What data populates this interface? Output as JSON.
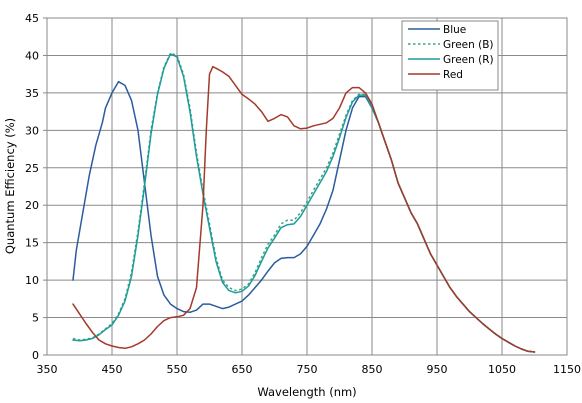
{
  "chart_data": {
    "type": "line",
    "xlabel": "Wavelength (nm)",
    "ylabel": "Quantum Efficiency (%)",
    "xlim": [
      350,
      1150
    ],
    "ylim": [
      0,
      45
    ],
    "x_ticks": [
      "350",
      "450",
      "550",
      "650",
      "750",
      "850",
      "950",
      "1050",
      "1150"
    ],
    "y_ticks": [
      "0",
      "5",
      "10",
      "15",
      "20",
      "25",
      "30",
      "35",
      "40",
      "45"
    ],
    "grid": true,
    "legend_position": "top-right",
    "series": [
      {
        "name": "Blue",
        "color": "#2a5c9e",
        "dash": "solid",
        "points": [
          [
            390,
            10
          ],
          [
            395,
            14
          ],
          [
            405,
            19
          ],
          [
            415,
            24
          ],
          [
            425,
            28
          ],
          [
            435,
            31
          ],
          [
            440,
            33
          ],
          [
            450,
            35
          ],
          [
            460,
            36.5
          ],
          [
            470,
            36
          ],
          [
            480,
            34
          ],
          [
            490,
            30
          ],
          [
            500,
            23
          ],
          [
            510,
            16
          ],
          [
            520,
            10.5
          ],
          [
            530,
            8
          ],
          [
            540,
            6.8
          ],
          [
            550,
            6.2
          ],
          [
            560,
            5.8
          ],
          [
            570,
            5.7
          ],
          [
            580,
            6
          ],
          [
            590,
            6.8
          ],
          [
            600,
            6.8
          ],
          [
            610,
            6.5
          ],
          [
            620,
            6.2
          ],
          [
            630,
            6.4
          ],
          [
            640,
            6.8
          ],
          [
            650,
            7.2
          ],
          [
            660,
            8
          ],
          [
            670,
            9
          ],
          [
            680,
            10
          ],
          [
            690,
            11.2
          ],
          [
            700,
            12.3
          ],
          [
            710,
            12.9
          ],
          [
            720,
            13
          ],
          [
            730,
            13
          ],
          [
            740,
            13.5
          ],
          [
            750,
            14.5
          ],
          [
            760,
            16
          ],
          [
            770,
            17.5
          ],
          [
            780,
            19.5
          ],
          [
            790,
            22
          ],
          [
            800,
            26
          ],
          [
            810,
            30
          ],
          [
            820,
            33
          ],
          [
            830,
            34.5
          ],
          [
            840,
            34.5
          ],
          [
            850,
            33
          ],
          [
            860,
            31
          ],
          [
            870,
            28.5
          ],
          [
            880,
            26
          ],
          [
            890,
            23
          ],
          [
            900,
            21
          ],
          [
            910,
            19
          ],
          [
            920,
            17.5
          ],
          [
            930,
            15.5
          ],
          [
            940,
            13.5
          ],
          [
            950,
            12
          ],
          [
            960,
            10.5
          ],
          [
            970,
            9
          ],
          [
            980,
            7.8
          ],
          [
            990,
            6.8
          ],
          [
            1000,
            5.8
          ],
          [
            1010,
            5
          ],
          [
            1020,
            4.2
          ],
          [
            1030,
            3.5
          ],
          [
            1040,
            2.8
          ],
          [
            1050,
            2.2
          ],
          [
            1060,
            1.7
          ],
          [
            1070,
            1.2
          ],
          [
            1080,
            0.8
          ],
          [
            1090,
            0.5
          ],
          [
            1100,
            0.4
          ]
        ]
      },
      {
        "name": "Green (B)",
        "color": "#3aa582",
        "dash": "dotted",
        "points": [
          [
            390,
            2.2
          ],
          [
            400,
            2
          ],
          [
            410,
            2.1
          ],
          [
            420,
            2.3
          ],
          [
            430,
            2.8
          ],
          [
            440,
            3.5
          ],
          [
            450,
            4.2
          ],
          [
            460,
            5.5
          ],
          [
            470,
            7.5
          ],
          [
            480,
            11
          ],
          [
            490,
            16.5
          ],
          [
            500,
            23
          ],
          [
            510,
            30
          ],
          [
            520,
            35
          ],
          [
            530,
            38.5
          ],
          [
            540,
            40.3
          ],
          [
            550,
            40
          ],
          [
            560,
            37.5
          ],
          [
            570,
            33
          ],
          [
            580,
            27
          ],
          [
            590,
            22
          ],
          [
            600,
            17.5
          ],
          [
            610,
            13
          ],
          [
            620,
            10
          ],
          [
            630,
            9
          ],
          [
            640,
            8.6
          ],
          [
            650,
            8.8
          ],
          [
            660,
            9.5
          ],
          [
            670,
            11
          ],
          [
            680,
            13
          ],
          [
            690,
            14.8
          ],
          [
            700,
            16
          ],
          [
            710,
            17.5
          ],
          [
            720,
            18
          ],
          [
            730,
            18
          ],
          [
            740,
            19
          ],
          [
            750,
            20.5
          ],
          [
            760,
            22
          ],
          [
            770,
            23.5
          ],
          [
            780,
            25
          ],
          [
            790,
            27
          ],
          [
            800,
            29.5
          ],
          [
            810,
            32
          ],
          [
            820,
            34
          ],
          [
            830,
            34.8
          ],
          [
            840,
            34.8
          ],
          [
            850,
            33.2
          ],
          [
            860,
            31
          ],
          [
            870,
            28.5
          ],
          [
            880,
            26
          ],
          [
            890,
            23
          ],
          [
            900,
            21
          ],
          [
            910,
            19
          ],
          [
            920,
            17.5
          ],
          [
            930,
            15.5
          ],
          [
            940,
            13.5
          ],
          [
            950,
            12
          ],
          [
            960,
            10.5
          ],
          [
            970,
            9
          ],
          [
            980,
            7.8
          ],
          [
            990,
            6.8
          ],
          [
            1000,
            5.8
          ],
          [
            1010,
            5
          ],
          [
            1020,
            4.2
          ],
          [
            1030,
            3.5
          ],
          [
            1040,
            2.8
          ],
          [
            1050,
            2.2
          ],
          [
            1060,
            1.7
          ],
          [
            1070,
            1.2
          ],
          [
            1080,
            0.8
          ],
          [
            1090,
            0.5
          ],
          [
            1100,
            0.4
          ]
        ]
      },
      {
        "name": "Green (R)",
        "color": "#1f9b9b",
        "dash": "solid",
        "points": [
          [
            390,
            2
          ],
          [
            400,
            1.9
          ],
          [
            410,
            2
          ],
          [
            420,
            2.2
          ],
          [
            430,
            2.7
          ],
          [
            440,
            3.4
          ],
          [
            450,
            4
          ],
          [
            460,
            5.3
          ],
          [
            470,
            7.2
          ],
          [
            480,
            10.5
          ],
          [
            490,
            16
          ],
          [
            500,
            22.5
          ],
          [
            510,
            29.5
          ],
          [
            520,
            34.8
          ],
          [
            530,
            38.3
          ],
          [
            540,
            40.2
          ],
          [
            550,
            39.8
          ],
          [
            560,
            37.2
          ],
          [
            570,
            32.5
          ],
          [
            580,
            26.5
          ],
          [
            590,
            21.5
          ],
          [
            600,
            17
          ],
          [
            610,
            12.5
          ],
          [
            620,
            9.7
          ],
          [
            630,
            8.6
          ],
          [
            640,
            8.3
          ],
          [
            650,
            8.5
          ],
          [
            660,
            9.2
          ],
          [
            670,
            10.6
          ],
          [
            680,
            12.5
          ],
          [
            690,
            14.3
          ],
          [
            700,
            15.6
          ],
          [
            710,
            17
          ],
          [
            720,
            17.4
          ],
          [
            730,
            17.5
          ],
          [
            740,
            18.5
          ],
          [
            750,
            20
          ],
          [
            760,
            21.5
          ],
          [
            770,
            23
          ],
          [
            780,
            24.5
          ],
          [
            790,
            26.5
          ],
          [
            800,
            29
          ],
          [
            810,
            31.7
          ],
          [
            820,
            33.8
          ],
          [
            830,
            34.7
          ],
          [
            840,
            34.7
          ],
          [
            850,
            33.1
          ],
          [
            860,
            31
          ],
          [
            870,
            28.5
          ],
          [
            880,
            26
          ],
          [
            890,
            23
          ],
          [
            900,
            21
          ],
          [
            910,
            19
          ],
          [
            920,
            17.5
          ],
          [
            930,
            15.5
          ],
          [
            940,
            13.5
          ],
          [
            950,
            12
          ],
          [
            960,
            10.5
          ],
          [
            970,
            9
          ],
          [
            980,
            7.8
          ],
          [
            990,
            6.8
          ],
          [
            1000,
            5.8
          ],
          [
            1010,
            5
          ],
          [
            1020,
            4.2
          ],
          [
            1030,
            3.5
          ],
          [
            1040,
            2.8
          ],
          [
            1050,
            2.2
          ],
          [
            1060,
            1.7
          ],
          [
            1070,
            1.2
          ],
          [
            1080,
            0.8
          ],
          [
            1090,
            0.5
          ],
          [
            1100,
            0.4
          ]
        ]
      },
      {
        "name": "Red",
        "color": "#a33a2a",
        "dash": "solid",
        "points": [
          [
            390,
            6.8
          ],
          [
            400,
            5.5
          ],
          [
            410,
            4.2
          ],
          [
            420,
            3
          ],
          [
            430,
            2
          ],
          [
            440,
            1.5
          ],
          [
            450,
            1.2
          ],
          [
            460,
            1
          ],
          [
            470,
            0.9
          ],
          [
            480,
            1.1
          ],
          [
            490,
            1.5
          ],
          [
            500,
            2
          ],
          [
            510,
            2.8
          ],
          [
            520,
            3.8
          ],
          [
            530,
            4.6
          ],
          [
            540,
            5
          ],
          [
            550,
            5.1
          ],
          [
            560,
            5.3
          ],
          [
            570,
            6.2
          ],
          [
            580,
            9
          ],
          [
            590,
            20
          ],
          [
            595,
            30
          ],
          [
            600,
            37.5
          ],
          [
            605,
            38.5
          ],
          [
            610,
            38.3
          ],
          [
            620,
            37.8
          ],
          [
            630,
            37.2
          ],
          [
            640,
            36
          ],
          [
            650,
            34.8
          ],
          [
            660,
            34.2
          ],
          [
            670,
            33.5
          ],
          [
            680,
            32.5
          ],
          [
            690,
            31.2
          ],
          [
            700,
            31.6
          ],
          [
            710,
            32.1
          ],
          [
            720,
            31.8
          ],
          [
            730,
            30.6
          ],
          [
            740,
            30.2
          ],
          [
            750,
            30.3
          ],
          [
            760,
            30.6
          ],
          [
            770,
            30.8
          ],
          [
            780,
            31
          ],
          [
            790,
            31.6
          ],
          [
            800,
            33
          ],
          [
            810,
            35
          ],
          [
            820,
            35.7
          ],
          [
            830,
            35.7
          ],
          [
            840,
            35
          ],
          [
            850,
            33.5
          ],
          [
            860,
            31
          ],
          [
            870,
            28.5
          ],
          [
            880,
            26
          ],
          [
            890,
            23
          ],
          [
            900,
            21
          ],
          [
            910,
            19
          ],
          [
            920,
            17.5
          ],
          [
            930,
            15.5
          ],
          [
            940,
            13.5
          ],
          [
            950,
            12
          ],
          [
            960,
            10.5
          ],
          [
            970,
            9
          ],
          [
            980,
            7.8
          ],
          [
            990,
            6.8
          ],
          [
            1000,
            5.8
          ],
          [
            1010,
            5
          ],
          [
            1020,
            4.2
          ],
          [
            1030,
            3.5
          ],
          [
            1040,
            2.8
          ],
          [
            1050,
            2.2
          ],
          [
            1060,
            1.7
          ],
          [
            1070,
            1.2
          ],
          [
            1080,
            0.8
          ],
          [
            1090,
            0.5
          ],
          [
            1100,
            0.4
          ]
        ]
      }
    ]
  }
}
